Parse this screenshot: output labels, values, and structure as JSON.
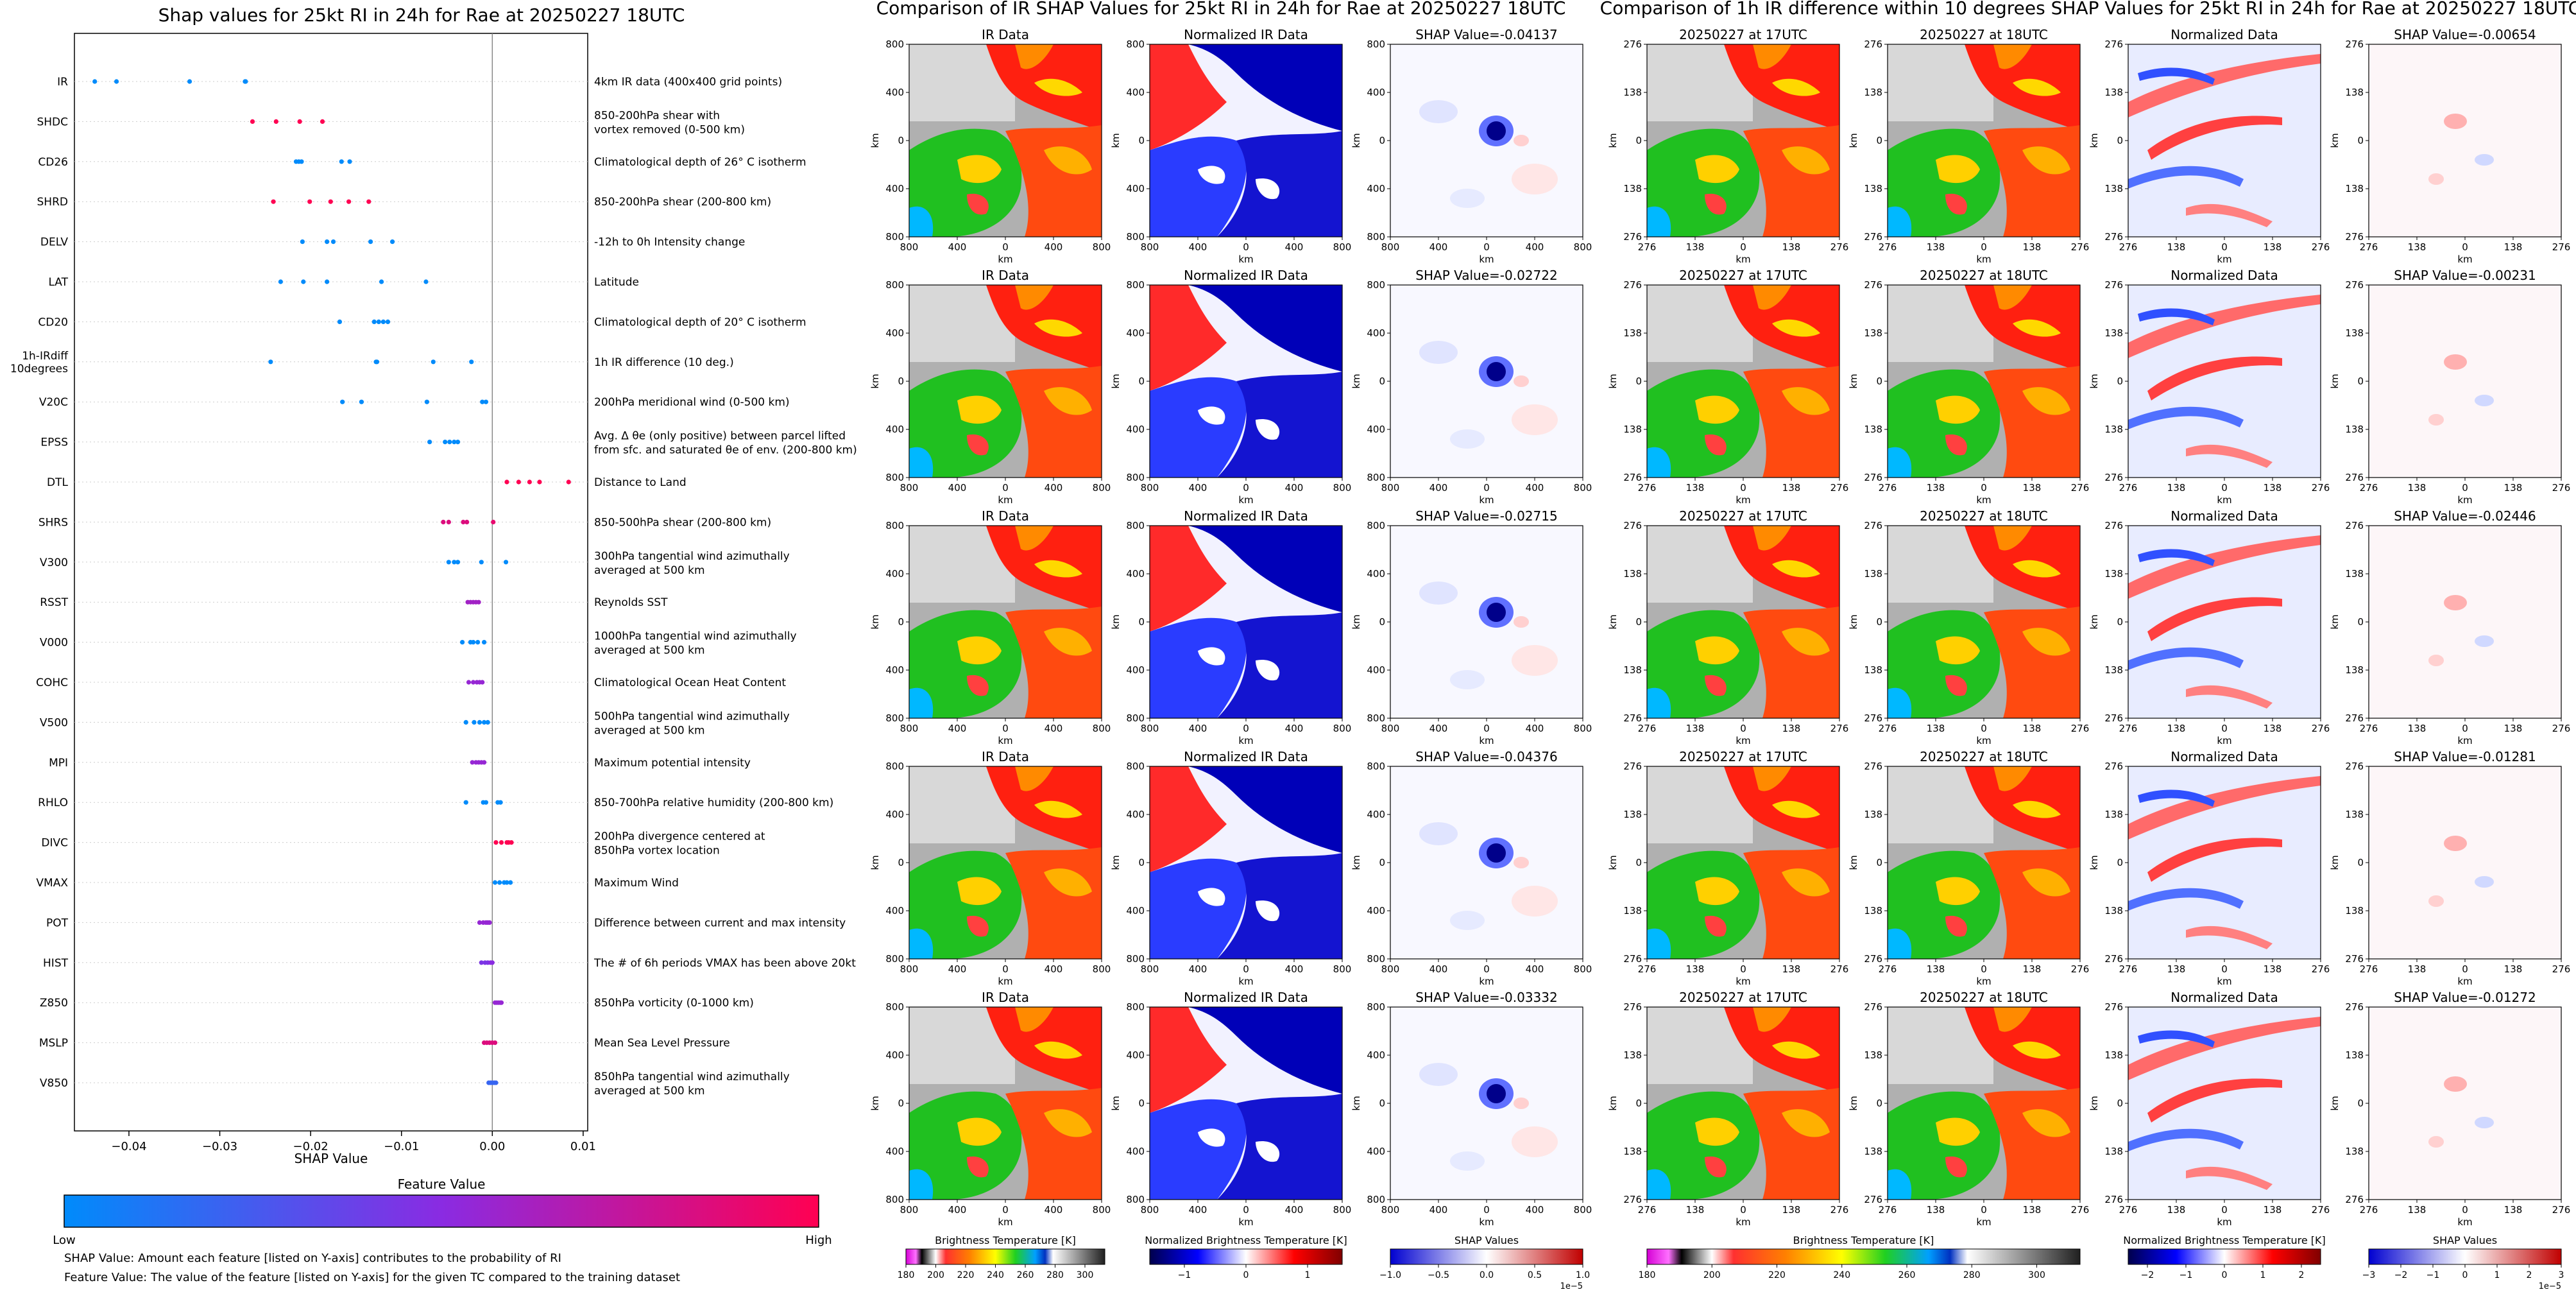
{
  "beeswarm": {
    "title": "Shap values for 25kt RI in 24h for Rae at 20250227 18UTC",
    "xlabel": "SHAP Value",
    "xticks": [
      "−0.04",
      "−0.03",
      "−0.02",
      "−0.01",
      "0.00",
      "0.01"
    ],
    "colorbar_title": "Feature Value",
    "colorbar_low": "Low",
    "colorbar_high": "High",
    "note1": "SHAP Value: Amount each feature [listed on Y-axis] contributes to the probability of RI",
    "note2": "Feature Value: The value of the feature [listed on Y-axis] for the given TC compared to the training dataset"
  },
  "irshap_section": {
    "title": "Comparison of IR SHAP Values for 25kt RI in 24h for Rae at 20250227 18UTC",
    "col_titles": [
      "IR Data",
      "Normalized IR Data"
    ],
    "shap_titles": [
      "SHAP Value=-0.04137",
      "SHAP Value=-0.02722",
      "SHAP Value=-0.02715",
      "SHAP Value=-0.04376",
      "SHAP Value=-0.03332"
    ],
    "xticks": [
      "800",
      "400",
      "0",
      "400",
      "800"
    ],
    "yticks": [
      "800",
      "400",
      "0",
      "400",
      "800"
    ],
    "unit": "km"
  },
  "diff_section": {
    "title": "Comparison of 1h IR difference within 10 degrees SHAP Values for 25kt RI in 24h for Rae at 20250227 18UTC",
    "col_titles": [
      "20250227 at 17UTC",
      "20250227 at 18UTC",
      "Normalized Data"
    ],
    "shap_titles": [
      "SHAP Value=-0.00654",
      "SHAP Value=-0.00231",
      "SHAP Value=-0.02446",
      "SHAP Value=-0.01281",
      "SHAP Value=-0.01272"
    ],
    "xticks": [
      "276",
      "138",
      "0",
      "138",
      "276"
    ],
    "yticks": [
      "276",
      "138",
      "0",
      "138",
      "276"
    ],
    "unit": "km"
  },
  "colorbars": [
    {
      "title": "Brightness Temperature [K]",
      "ticks": [
        "180",
        "200",
        "220",
        "240",
        "260",
        "280",
        "300"
      ],
      "exp": ""
    },
    {
      "title": "Normalized Brightness Temperature [K]",
      "ticks": [
        "−1",
        "0",
        "1"
      ],
      "exp": ""
    },
    {
      "title": "SHAP Values",
      "ticks": [
        "−1.0",
        "−0.5",
        "0.0",
        "0.5",
        "1.0"
      ],
      "exp": "1e−5"
    },
    {
      "title": "Brightness Temperature [K]",
      "ticks": [
        "180",
        "200",
        "220",
        "240",
        "260",
        "280",
        "300"
      ],
      "exp": ""
    },
    {
      "title": "Normalized Brightness Temperature [K]",
      "ticks": [
        "−2",
        "−1",
        "0",
        "1",
        "2"
      ],
      "exp": ""
    },
    {
      "title": "SHAP Values",
      "ticks": [
        "−3",
        "−2",
        "−1",
        "0",
        "1",
        "2",
        "3"
      ],
      "exp": "1e−5"
    }
  ],
  "chart_data": {
    "type": "scatter",
    "title": "Shap values for 25kt RI in 24h for Rae at 20250227 18UTC",
    "xlabel": "SHAP Value",
    "xlim": [
      -0.046,
      0.0105
    ],
    "colors": {
      "low": "#008bfb",
      "mid": "#8a2be2",
      "high": "#ff0052"
    },
    "features": [
      {
        "name": "IR",
        "desc": "4km IR data (400x400 grid points)",
        "points": [
          [
            -0.04376,
            0
          ],
          [
            -0.04137,
            0
          ],
          [
            -0.03332,
            0
          ],
          [
            -0.02722,
            0
          ],
          [
            -0.02715,
            0
          ]
        ]
      },
      {
        "name": "SHDC",
        "desc": "850-200hPa shear with\nvortex removed (0-500 km)",
        "points": [
          [
            -0.0264,
            1
          ],
          [
            -0.0238,
            1
          ],
          [
            -0.0212,
            1
          ],
          [
            -0.0187,
            1
          ]
        ]
      },
      {
        "name": "CD26",
        "desc": "Climatological depth of 26° C isotherm",
        "points": [
          [
            -0.0216,
            0
          ],
          [
            -0.0213,
            0
          ],
          [
            -0.021,
            0
          ],
          [
            -0.0166,
            0
          ],
          [
            -0.0157,
            0
          ]
        ]
      },
      {
        "name": "SHRD",
        "desc": "850-200hPa shear (200-800 km)",
        "points": [
          [
            -0.0241,
            1
          ],
          [
            -0.0201,
            1
          ],
          [
            -0.0178,
            1
          ],
          [
            -0.0158,
            1
          ],
          [
            -0.0136,
            1
          ]
        ]
      },
      {
        "name": "DELV",
        "desc": "-12h to 0h Intensity change",
        "points": [
          [
            -0.0209,
            0
          ],
          [
            -0.0182,
            0
          ],
          [
            -0.0175,
            0
          ],
          [
            -0.0134,
            0
          ],
          [
            -0.011,
            0
          ]
        ]
      },
      {
        "name": "LAT",
        "desc": "Latitude",
        "points": [
          [
            -0.0233,
            0
          ],
          [
            -0.0208,
            0
          ],
          [
            -0.0182,
            0
          ],
          [
            -0.0122,
            0
          ],
          [
            -0.0073,
            0
          ]
        ]
      },
      {
        "name": "CD20",
        "desc": "Climatological depth of 20° C isotherm",
        "points": [
          [
            -0.0168,
            0
          ],
          [
            -0.013,
            0
          ],
          [
            -0.0125,
            0
          ],
          [
            -0.012,
            0
          ],
          [
            -0.0115,
            0
          ]
        ]
      },
      {
        "name": "1h-IRdiff\n10degrees",
        "desc": "1h IR difference (10 deg.)",
        "points": [
          [
            -0.0244,
            0
          ],
          [
            -0.0128,
            0
          ],
          [
            -0.0127,
            0
          ],
          [
            -0.0065,
            0
          ],
          [
            -0.0023,
            0
          ]
        ]
      },
      {
        "name": "V20C",
        "desc": "200hPa meridional wind (0-500 km)",
        "points": [
          [
            -0.0165,
            0
          ],
          [
            -0.0144,
            0
          ],
          [
            -0.0072,
            0
          ],
          [
            -0.0011,
            0
          ],
          [
            -0.0007,
            0
          ]
        ]
      },
      {
        "name": "EPSS",
        "desc": "Avg. Δ θe (only positive) between parcel lifted\nfrom sfc. and saturated θe of env. (200-800 km)",
        "points": [
          [
            -0.0069,
            0
          ],
          [
            -0.0052,
            0
          ],
          [
            -0.0047,
            0
          ],
          [
            -0.0042,
            0
          ],
          [
            -0.0038,
            0
          ]
        ]
      },
      {
        "name": "DTL",
        "desc": "Distance to Land",
        "points": [
          [
            0.0016,
            1
          ],
          [
            0.0029,
            1
          ],
          [
            0.0041,
            1
          ],
          [
            0.0052,
            1
          ],
          [
            0.0084,
            1
          ]
        ]
      },
      {
        "name": "SHRS",
        "desc": "850-500hPa shear (200-800 km)",
        "points": [
          [
            -0.0054,
            0.85
          ],
          [
            -0.0048,
            0.85
          ],
          [
            -0.0032,
            0.85
          ],
          [
            -0.0028,
            0.85
          ],
          [
            0.0001,
            0.9
          ]
        ]
      },
      {
        "name": "V300",
        "desc": "300hPa tangential wind azimuthally\naveraged at 500 km",
        "points": [
          [
            -0.0048,
            0
          ],
          [
            -0.0042,
            0
          ],
          [
            -0.0038,
            0
          ],
          [
            -0.0012,
            0
          ],
          [
            0.0015,
            0
          ]
        ]
      },
      {
        "name": "RSST",
        "desc": "Reynolds SST",
        "points": [
          [
            -0.0027,
            0.6
          ],
          [
            -0.0024,
            0.6
          ],
          [
            -0.0021,
            0.6
          ],
          [
            -0.0018,
            0.6
          ],
          [
            -0.0015,
            0.6
          ]
        ]
      },
      {
        "name": "V000",
        "desc": "1000hPa tangential wind azimuthally\naveraged at 500 km",
        "points": [
          [
            -0.0033,
            0
          ],
          [
            -0.0024,
            0
          ],
          [
            -0.0021,
            0
          ],
          [
            -0.0016,
            0
          ],
          [
            -0.0009,
            0
          ]
        ]
      },
      {
        "name": "COHC",
        "desc": "Climatological Ocean Heat Content",
        "points": [
          [
            -0.0026,
            0.55
          ],
          [
            -0.0021,
            0.55
          ],
          [
            -0.0017,
            0.55
          ],
          [
            -0.0014,
            0.55
          ],
          [
            -0.0011,
            0.55
          ]
        ]
      },
      {
        "name": "V500",
        "desc": "500hPa tangential wind azimuthally\naveraged at 500 km",
        "points": [
          [
            -0.0029,
            0
          ],
          [
            -0.002,
            0
          ],
          [
            -0.0014,
            0
          ],
          [
            -0.0009,
            0
          ],
          [
            -0.0005,
            0
          ]
        ]
      },
      {
        "name": "MPI",
        "desc": "Maximum potential intensity",
        "points": [
          [
            -0.0022,
            0.55
          ],
          [
            -0.0018,
            0.55
          ],
          [
            -0.0015,
            0.55
          ],
          [
            -0.0012,
            0.55
          ],
          [
            -0.0009,
            0.55
          ]
        ]
      },
      {
        "name": "RHLO",
        "desc": "850-700hPa relative humidity (200-800 km)",
        "points": [
          [
            -0.0029,
            0
          ],
          [
            -0.001,
            0
          ],
          [
            -0.0007,
            0
          ],
          [
            0.0006,
            0
          ],
          [
            0.0009,
            0
          ]
        ]
      },
      {
        "name": "DIVC",
        "desc": "200hPa divergence centered at\n850hPa vortex location",
        "points": [
          [
            0.0004,
            1
          ],
          [
            0.001,
            1
          ],
          [
            0.0016,
            1
          ],
          [
            0.0018,
            1
          ],
          [
            0.0021,
            1
          ]
        ]
      },
      {
        "name": "VMAX",
        "desc": "Maximum Wind",
        "points": [
          [
            0.0003,
            0
          ],
          [
            0.0008,
            0
          ],
          [
            0.0013,
            0
          ],
          [
            0.0016,
            0
          ],
          [
            0.002,
            0
          ]
        ]
      },
      {
        "name": "POT",
        "desc": "Difference between current and max intensity",
        "points": [
          [
            -0.0014,
            0.55
          ],
          [
            -0.001,
            0.55
          ],
          [
            -0.0007,
            0.55
          ],
          [
            -0.0005,
            0.55
          ],
          [
            -0.0003,
            0.55
          ]
        ]
      },
      {
        "name": "HIST",
        "desc": "The # of 6h periods VMAX has been above 20kt",
        "points": [
          [
            -0.0012,
            0.45
          ],
          [
            -0.0008,
            0.45
          ],
          [
            -0.0005,
            0.45
          ],
          [
            -0.0002,
            0.5
          ],
          [
            0.0,
            0.5
          ]
        ]
      },
      {
        "name": "Z850",
        "desc": "850hPa vorticity (0-1000 km)",
        "points": [
          [
            0.0003,
            0.55
          ],
          [
            0.0005,
            0.55
          ],
          [
            0.0007,
            0.55
          ],
          [
            0.0009,
            0.55
          ],
          [
            0.001,
            0.55
          ]
        ]
      },
      {
        "name": "MSLP",
        "desc": "Mean Sea Level Pressure",
        "points": [
          [
            -0.0009,
            0.85
          ],
          [
            -0.0006,
            0.85
          ],
          [
            -0.0003,
            0.85
          ],
          [
            0.0,
            0.85
          ],
          [
            0.0003,
            0.85
          ]
        ]
      },
      {
        "name": "V850",
        "desc": "850hPa tangential wind azimuthally\naveraged at 500 km",
        "points": [
          [
            -0.0004,
            0.2
          ],
          [
            -0.0002,
            0.2
          ],
          [
            0.0,
            0.2
          ],
          [
            0.0002,
            0.2
          ],
          [
            0.0004,
            0.2
          ]
        ]
      }
    ]
  }
}
